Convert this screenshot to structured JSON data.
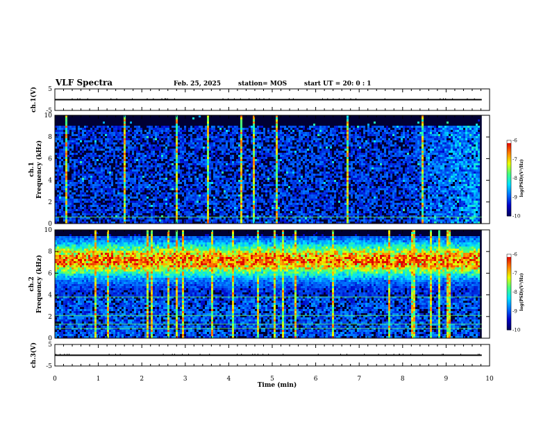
{
  "header": {
    "title": "VLF Spectra",
    "date": "Feb. 25, 2025",
    "station": "station= MOS",
    "start": "start  UT =   20: 0  : 1"
  },
  "chart_data": [
    {
      "type": "line",
      "id": "ch1-voltage",
      "ylabel": "ch.1(V)",
      "ylim": [
        -5,
        5
      ],
      "yticks": [
        "5",
        "-5"
      ],
      "series": [
        {
          "x": [
            0,
            9.82
          ],
          "y": [
            0,
            0
          ]
        }
      ]
    },
    {
      "type": "heatmap",
      "id": "ch1-spectrogram",
      "ylabel": "ch.1\nFrequency (kHz)",
      "ylabel_lines": [
        "ch.1",
        "Frequency (kHz)"
      ],
      "ylim": [
        0,
        10
      ],
      "yticks": [
        "0",
        "2",
        "4",
        "6",
        "8",
        "10"
      ],
      "x_extent": [
        0,
        9.82
      ],
      "colorbar": {
        "label": "log(PSD)(V²/Hz)",
        "range": [
          -10,
          -6
        ],
        "ticks": [
          "-6",
          "-7",
          "-8",
          "-9",
          "-10"
        ]
      }
    },
    {
      "type": "heatmap",
      "id": "ch2-spectrogram",
      "ylabel": "ch.2\nFrequency (kHz)",
      "ylabel_lines": [
        "ch.2",
        "Frequency (kHz)"
      ],
      "ylim": [
        0,
        10
      ],
      "yticks": [
        "0",
        "2",
        "4",
        "6",
        "8",
        "10"
      ],
      "x_extent": [
        0,
        9.82
      ],
      "colorbar": {
        "label": "log(PSD)(V²/Hz)",
        "range": [
          -10,
          -6
        ],
        "ticks": [
          "-6",
          "-7",
          "-8",
          "-9",
          "-10"
        ]
      }
    },
    {
      "type": "line",
      "id": "ch3-voltage",
      "ylabel": "ch.3(V)",
      "ylim": [
        -5,
        5
      ],
      "yticks": [
        "5",
        "-5"
      ],
      "series": [
        {
          "x": [
            0,
            9.82
          ],
          "y": [
            0,
            0
          ]
        }
      ]
    }
  ],
  "xaxis": {
    "label": "Time  (min)",
    "xlim": [
      0,
      10
    ],
    "ticks": [
      "0",
      "1",
      "2",
      "3",
      "4",
      "5",
      "6",
      "7",
      "8",
      "9",
      "10"
    ]
  },
  "colors": {
    "colormap": [
      "#000060",
      "#0000c8",
      "#0070ff",
      "#00e0ff",
      "#40ff80",
      "#e8ff00",
      "#ff8000",
      "#e00000",
      "#ffffff"
    ],
    "background": "#000033"
  }
}
